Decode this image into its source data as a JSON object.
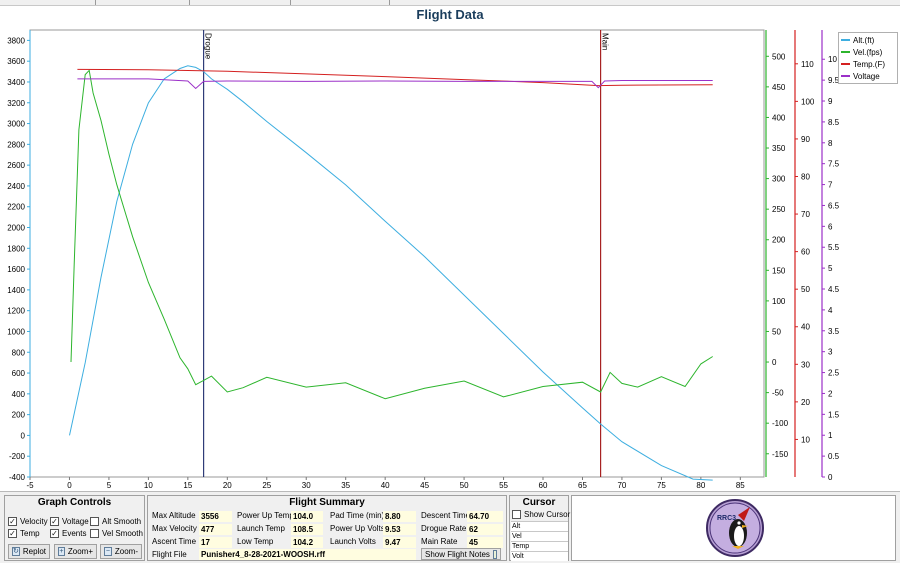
{
  "chart_data": {
    "type": "line",
    "title": "Flight Data",
    "xlim": [
      -5,
      88
    ],
    "xticks": [
      -5,
      0,
      5,
      10,
      15,
      20,
      25,
      30,
      35,
      40,
      45,
      50,
      55,
      60,
      65,
      70,
      75,
      80,
      85
    ],
    "axes": {
      "altitude": {
        "ylim": [
          -400,
          3900
        ],
        "ticks": [
          -400,
          -200,
          0,
          200,
          400,
          600,
          800,
          1000,
          1200,
          1400,
          1600,
          1800,
          2000,
          2200,
          2400,
          2600,
          2800,
          3000,
          3200,
          3400,
          3600,
          3800
        ],
        "color": "#3daee0"
      },
      "velocity": {
        "ylim": [
          -188,
          543
        ],
        "ticks": [
          -150,
          -100,
          -50,
          0,
          50,
          100,
          150,
          200,
          250,
          300,
          350,
          400,
          450,
          500
        ],
        "color": "#2db52d"
      },
      "temperature": {
        "ylim": [
          0,
          119
        ],
        "ticks": [
          10,
          20,
          30,
          40,
          50,
          60,
          70,
          80,
          90,
          100,
          110
        ],
        "color": "#d42020"
      },
      "voltage": {
        "ylim": [
          0,
          10.7
        ],
        "ticks": [
          0,
          0.5,
          1,
          1.5,
          2,
          2.5,
          3,
          3.5,
          4,
          4.5,
          5,
          5.5,
          6,
          6.5,
          7,
          7.5,
          8,
          8.5,
          9,
          9.5,
          10
        ],
        "color": "#9b30c8"
      }
    },
    "events": [
      {
        "name": "Drogue",
        "x": 17,
        "color": "#1c2b6b"
      },
      {
        "name": "Main",
        "x": 67.3,
        "color": "#a01010"
      }
    ],
    "series": [
      {
        "name": "Alt.(ft)",
        "axis": "altitude",
        "color": "#3daee0",
        "x": [
          0,
          2,
          4,
          6,
          8,
          10,
          12,
          14,
          15,
          16,
          17,
          18,
          20,
          22,
          25,
          30,
          35,
          40,
          45,
          50,
          55,
          60,
          65,
          67.3,
          70,
          75,
          79,
          81.5
        ],
        "y": [
          0,
          700,
          1520,
          2250,
          2800,
          3200,
          3430,
          3530,
          3556,
          3540,
          3500,
          3430,
          3330,
          3210,
          3020,
          2720,
          2410,
          2060,
          1720,
          1350,
          980,
          610,
          265,
          110,
          -60,
          -290,
          -420,
          -430
        ]
      },
      {
        "name": "Vel.(fps)",
        "axis": "velocity",
        "color": "#2db52d",
        "x": [
          0.2,
          0.6,
          1.2,
          2,
          2.5,
          3,
          4,
          5,
          6,
          8,
          10,
          12,
          14,
          15,
          16,
          17,
          18,
          20,
          22,
          25,
          30,
          35,
          40,
          45,
          50,
          55,
          60,
          65,
          67.3,
          68.5,
          70,
          72,
          75,
          78,
          80,
          81.5
        ],
        "y": [
          0,
          160,
          380,
          470,
          477,
          440,
          395,
          340,
          290,
          205,
          130,
          70,
          10,
          -20,
          -25,
          -30,
          -35,
          -40,
          -45,
          -40,
          -35,
          -40,
          -45,
          -40,
          -40,
          -45,
          -40,
          -45,
          -40,
          -20,
          -50,
          -35,
          -30,
          -25,
          0,
          0
        ]
      },
      {
        "name": "Temp.(F)",
        "axis": "temperature",
        "color": "#d42020",
        "x": [
          1,
          10,
          20,
          30,
          40,
          50,
          60,
          67,
          70,
          81.5
        ],
        "y": [
          108.5,
          108.4,
          108,
          107.3,
          106.6,
          105.8,
          105,
          104.2,
          104.3,
          104.4
        ]
      },
      {
        "name": "Voltage",
        "axis": "voltage",
        "color": "#9b30c8",
        "x": [
          1,
          10,
          15,
          16,
          17,
          20,
          30,
          40,
          50,
          60,
          66.2,
          67,
          67.8,
          70,
          81.5
        ],
        "y": [
          9.53,
          9.53,
          9.48,
          9.3,
          9.47,
          9.48,
          9.47,
          9.48,
          9.47,
          9.47,
          9.47,
          9.32,
          9.48,
          9.49,
          9.49
        ]
      }
    ],
    "legend": {
      "position": "top-right",
      "entries": [
        "Alt.(ft)",
        "Vel.(fps)",
        "Temp.(F)",
        "Voltage"
      ]
    }
  },
  "graph_controls": {
    "title": "Graph Controls",
    "checkboxes": [
      {
        "label": "Velocity",
        "checked": true
      },
      {
        "label": "Voltage",
        "checked": true
      },
      {
        "label": "Alt Smooth",
        "checked": false
      },
      {
        "label": "Temp",
        "checked": true
      },
      {
        "label": "Events",
        "checked": true
      },
      {
        "label": "Vel Smooth",
        "checked": false
      }
    ],
    "buttons": {
      "replot": "Replot",
      "zoom_in": "Zoom+",
      "zoom_out": "Zoom-"
    }
  },
  "flight_summary": {
    "title": "Flight Summary",
    "max_altitude_label": "Max Altitude",
    "max_altitude": "3556",
    "max_velocity_label": "Max Velocity",
    "max_velocity": "477",
    "ascent_time_label": "Ascent Time",
    "ascent_time": "17",
    "power_up_temp_label": "Power Up Temp",
    "power_up_temp": "104.0",
    "launch_temp_label": "Launch Temp",
    "launch_temp": "108.5",
    "low_temp_label": "Low Temp",
    "low_temp": "104.2",
    "pad_time_label": "Pad Time (min)",
    "pad_time": "8.80",
    "power_up_volts_label": "Power Up Volts",
    "power_up_volts": "9.53",
    "launch_volts_label": "Launch Volts",
    "launch_volts": "9.47",
    "descent_time_label": "Descent Time",
    "descent_time": "64.70",
    "drogue_rate_label": "Drogue Rate",
    "drogue_rate": "62",
    "main_rate_label": "Main Rate",
    "main_rate": "45",
    "flight_file_label": "Flight File",
    "flight_file": "Punisher4_8-28-2021-WOOSH.rff",
    "show_notes": "Show Flight Notes"
  },
  "cursor": {
    "title": "Cursor",
    "show_cursor": "Show Cursor",
    "rows": [
      "Alt",
      "Vel",
      "Temp",
      "Volt"
    ]
  },
  "logo": {
    "text": "RRC3"
  }
}
